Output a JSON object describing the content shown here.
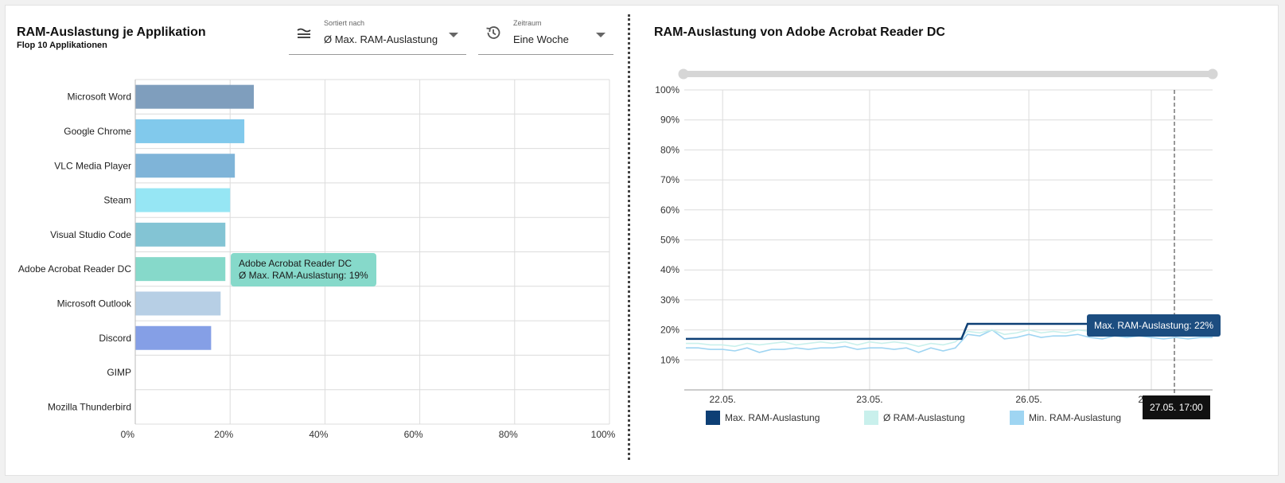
{
  "left_panel": {
    "title": "RAM-Auslastung je Applikation",
    "subtitle": "Flop 10 Applikationen",
    "sort_select": {
      "label": "Sortiert nach",
      "value": "Ø Max. RAM-Auslastung",
      "icon": "sort-icon"
    },
    "range_select": {
      "label": "Zeitraum",
      "value": "Eine Woche",
      "icon": "history-icon"
    },
    "tooltip": {
      "line1": "Adobe Acrobat Reader DC",
      "line2": "Ø Max. RAM-Auslastung: 19%"
    }
  },
  "right_panel": {
    "title": "RAM-Auslastung von Adobe Acrobat Reader DC",
    "tooltip_value": "Max. RAM-Auslastung: 22%",
    "tooltip_time": "27.05. 17:00"
  },
  "chart_data": [
    {
      "type": "bar",
      "orientation": "horizontal",
      "categories": [
        "Microsoft Word",
        "Google Chrome",
        "VLC Media Player",
        "Steam",
        "Visual Studio Code",
        "Adobe Acrobat Reader DC",
        "Microsoft Outlook",
        "Discord",
        "GIMP",
        "Mozilla Thunderbird"
      ],
      "values": [
        25,
        23,
        21,
        20,
        19,
        19,
        18,
        16,
        0,
        0
      ],
      "colors": [
        "#7f9ebd",
        "#81c9ec",
        "#7fb4d8",
        "#96e6f4",
        "#83c4d4",
        "#86d9ca",
        "#b7cfe5",
        "#859fe6",
        "#ffffff",
        "#ffffff"
      ],
      "x_ticks": [
        "0%",
        "20%",
        "40%",
        "60%",
        "80%",
        "100%"
      ],
      "xlim": [
        0,
        100
      ],
      "grid": true
    },
    {
      "type": "line",
      "x_labels": [
        "22.05.",
        "23.05.",
        "26.05.",
        "27.05."
      ],
      "y_ticks": [
        "10%",
        "20%",
        "30%",
        "40%",
        "50%",
        "60%",
        "70%",
        "80%",
        "90%",
        "100%"
      ],
      "ylim": [
        0,
        100
      ],
      "grid": true,
      "legend": "bottom",
      "series": [
        {
          "name": "Max. RAM-Auslastung",
          "color": "#0d3f75",
          "values": [
            17,
            17,
            17,
            17,
            17,
            17,
            17,
            17,
            17,
            17,
            17,
            17,
            17,
            17,
            17,
            17,
            17,
            17,
            17,
            17,
            17,
            17,
            17,
            22,
            22,
            22,
            22,
            22,
            22,
            22,
            22,
            22,
            22,
            22,
            22,
            22,
            22,
            22,
            22,
            22,
            22,
            22,
            22,
            22
          ]
        },
        {
          "name": "Ø RAM-Auslastung",
          "color": "#c9f0ec",
          "values": [
            15.5,
            15.5,
            15,
            15,
            14.5,
            15.5,
            15,
            15.5,
            16,
            15,
            15.5,
            16,
            15.5,
            16,
            15,
            16,
            15.5,
            16,
            15.5,
            14.5,
            15.5,
            15,
            16,
            19.5,
            19,
            20,
            18.5,
            19,
            20,
            19,
            19.5,
            19,
            20,
            19.5,
            18.5,
            19.5,
            19,
            19.5,
            19,
            19.5,
            19,
            18.5,
            19,
            19.5
          ]
        },
        {
          "name": "Min. RAM-Auslastung",
          "color": "#9fd5f2",
          "values": [
            14,
            14,
            13.5,
            13.5,
            13,
            14,
            12.5,
            13.5,
            13.5,
            14,
            13.5,
            14,
            14,
            14.5,
            13.5,
            14,
            14,
            13.5,
            14,
            12.5,
            14,
            13,
            14,
            18.5,
            18,
            20,
            17,
            17.5,
            18.5,
            17.5,
            18,
            18,
            18.5,
            17.5,
            17,
            18,
            17.5,
            18,
            17.5,
            17,
            17.5,
            17,
            17.5,
            17.5
          ]
        }
      ]
    }
  ]
}
